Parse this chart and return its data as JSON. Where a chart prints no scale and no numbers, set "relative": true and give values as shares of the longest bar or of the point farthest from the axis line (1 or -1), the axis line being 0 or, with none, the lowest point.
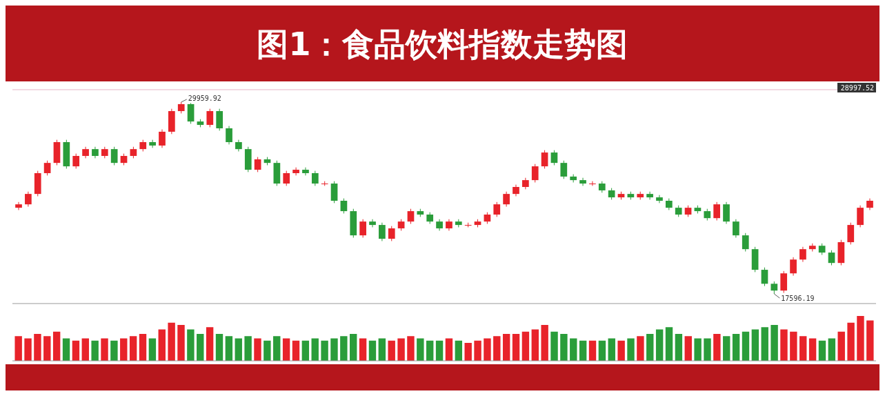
{
  "chart_data": [
    {
      "type": "candlestick",
      "title": "图1：食品饮料指数走势图",
      "categories": [
        null,
        null,
        null,
        null,
        null,
        null,
        null,
        null,
        null,
        null,
        null,
        null,
        null,
        null,
        null,
        null,
        null,
        null,
        null,
        null,
        null,
        null,
        null,
        null,
        null,
        null,
        null,
        null,
        null,
        null,
        null,
        null,
        null,
        null,
        null,
        null,
        null,
        null,
        null,
        null,
        null,
        null,
        null,
        null,
        null,
        null,
        null,
        null,
        null,
        null,
        null,
        null,
        null,
        null,
        null,
        null,
        null,
        null,
        null,
        null,
        null,
        null,
        null,
        null,
        null,
        null,
        null,
        null,
        null,
        null,
        null,
        null,
        null,
        null,
        null,
        null,
        null,
        null,
        null,
        null,
        null,
        null,
        null,
        null,
        null,
        null,
        null,
        null,
        null,
        null
      ],
      "ohlc": [
        [
          23150,
          23520,
          23000,
          23370
        ],
        [
          23370,
          24190,
          23220,
          24040
        ],
        [
          24040,
          25530,
          23890,
          25380
        ],
        [
          25380,
          26190,
          25230,
          26040
        ],
        [
          26040,
          27530,
          25890,
          27380
        ],
        [
          27380,
          27530,
          25670,
          25820
        ],
        [
          25820,
          26640,
          25670,
          26490
        ],
        [
          26490,
          27080,
          26340,
          26930
        ],
        [
          26930,
          27080,
          26340,
          26490
        ],
        [
          26490,
          27080,
          26340,
          26930
        ],
        [
          26930,
          27080,
          25890,
          26040
        ],
        [
          26040,
          26640,
          25890,
          26490
        ],
        [
          26490,
          27080,
          26340,
          26930
        ],
        [
          26930,
          27530,
          26780,
          27380
        ],
        [
          27380,
          27530,
          27010,
          27160
        ],
        [
          27160,
          28200,
          27010,
          28050
        ],
        [
          28050,
          29530,
          27900,
          29380
        ],
        [
          29380,
          29959.92,
          29230,
          29830
        ],
        [
          29830,
          29900,
          28560,
          28710
        ],
        [
          28710,
          28860,
          28340,
          28490
        ],
        [
          28490,
          29530,
          28340,
          29380
        ],
        [
          29380,
          29530,
          28120,
          28270
        ],
        [
          28270,
          28420,
          27230,
          27380
        ],
        [
          27380,
          27530,
          26780,
          26930
        ],
        [
          26930,
          27080,
          25450,
          25600
        ],
        [
          25600,
          26420,
          25450,
          26270
        ],
        [
          26270,
          26420,
          25890,
          26040
        ],
        [
          26040,
          26190,
          24560,
          24710
        ],
        [
          24710,
          25530,
          24560,
          25380
        ],
        [
          25380,
          25750,
          25230,
          25600
        ],
        [
          25600,
          25750,
          25230,
          25380
        ],
        [
          25380,
          25530,
          24560,
          24710
        ],
        [
          24710,
          24860,
          24560,
          24710
        ],
        [
          24710,
          24860,
          23450,
          23600
        ],
        [
          23600,
          23750,
          22780,
          22930
        ],
        [
          22930,
          23080,
          21220,
          21370
        ],
        [
          21370,
          22410,
          21220,
          22260
        ],
        [
          22260,
          22410,
          21890,
          22040
        ],
        [
          22040,
          22190,
          21000,
          21150
        ],
        [
          21150,
          21970,
          21000,
          21820
        ],
        [
          21820,
          22410,
          21670,
          22260
        ],
        [
          22260,
          23080,
          22110,
          22930
        ],
        [
          22930,
          23080,
          22560,
          22710
        ],
        [
          22710,
          22860,
          22110,
          22260
        ],
        [
          22260,
          22410,
          21670,
          21820
        ],
        [
          21820,
          22410,
          21670,
          22260
        ],
        [
          22260,
          22410,
          21890,
          22040
        ],
        [
          22040,
          22190,
          21890,
          22040
        ],
        [
          22040,
          22410,
          21890,
          22260
        ],
        [
          22260,
          22860,
          22110,
          22710
        ],
        [
          22710,
          23520,
          22560,
          23370
        ],
        [
          23370,
          24190,
          23220,
          24040
        ],
        [
          24040,
          24640,
          23890,
          24490
        ],
        [
          24490,
          25080,
          24340,
          24930
        ],
        [
          24930,
          25970,
          24780,
          25820
        ],
        [
          25820,
          26860,
          25670,
          26710
        ],
        [
          26710,
          26860,
          25890,
          26040
        ],
        [
          26040,
          26190,
          25010,
          25160
        ],
        [
          25160,
          25310,
          24780,
          24930
        ],
        [
          24930,
          25080,
          24560,
          24710
        ],
        [
          24710,
          24860,
          24560,
          24710
        ],
        [
          24710,
          24860,
          24120,
          24270
        ],
        [
          24270,
          24420,
          23670,
          23820
        ],
        [
          23820,
          24190,
          23670,
          24040
        ],
        [
          24040,
          24190,
          23670,
          23820
        ],
        [
          23820,
          24190,
          23670,
          24040
        ],
        [
          24040,
          24190,
          23670,
          23820
        ],
        [
          23820,
          23970,
          23450,
          23600
        ],
        [
          23600,
          23750,
          23000,
          23150
        ],
        [
          23150,
          23300,
          22560,
          22710
        ],
        [
          22710,
          23300,
          22560,
          23150
        ],
        [
          23150,
          23300,
          22780,
          22930
        ],
        [
          22930,
          23080,
          22330,
          22480
        ],
        [
          22480,
          23520,
          22330,
          23370
        ],
        [
          23370,
          23520,
          22110,
          22260
        ],
        [
          22260,
          22410,
          21220,
          21370
        ],
        [
          21370,
          21520,
          20330,
          20480
        ],
        [
          20480,
          20630,
          19000,
          19150
        ],
        [
          19150,
          19300,
          18100,
          18250
        ],
        [
          18250,
          18400,
          17596.19,
          17810
        ],
        [
          17810,
          19070,
          17660,
          18920
        ],
        [
          18920,
          19960,
          18770,
          19810
        ],
        [
          19810,
          20630,
          19660,
          20480
        ],
        [
          20480,
          20850,
          20330,
          20700
        ],
        [
          20700,
          20850,
          20110,
          20260
        ],
        [
          20260,
          20410,
          19440,
          19590
        ],
        [
          19590,
          21080,
          19440,
          20930
        ],
        [
          20930,
          22190,
          20780,
          22040
        ],
        [
          22040,
          23300,
          21890,
          23150
        ],
        [
          23150,
          23750,
          23000,
          23600
        ]
      ],
      "annotations": [
        "29959.92",
        "17596.19",
        "28997.52"
      ]
    },
    {
      "type": "bar",
      "relative": true,
      "categories": [
        null,
        null,
        null,
        null,
        null,
        null,
        null,
        null,
        null,
        null,
        null,
        null,
        null,
        null,
        null,
        null,
        null,
        null,
        null,
        null,
        null,
        null,
        null,
        null,
        null,
        null,
        null,
        null,
        null,
        null,
        null,
        null,
        null,
        null,
        null,
        null,
        null,
        null,
        null,
        null,
        null,
        null,
        null,
        null,
        null,
        null,
        null,
        null,
        null,
        null,
        null,
        null,
        null,
        null,
        null,
        null,
        null,
        null,
        null,
        null,
        null,
        null,
        null,
        null,
        null,
        null,
        null,
        null,
        null,
        null,
        null,
        null,
        null,
        null,
        null,
        null,
        null,
        null,
        null,
        null,
        null,
        null,
        null,
        null,
        null,
        null,
        null,
        null,
        null,
        null
      ],
      "values": [
        0.55,
        0.5,
        0.6,
        0.55,
        0.65,
        0.5,
        0.45,
        0.5,
        0.45,
        0.5,
        0.45,
        0.5,
        0.55,
        0.6,
        0.5,
        0.7,
        0.85,
        0.8,
        0.7,
        0.6,
        0.75,
        0.6,
        0.55,
        0.5,
        0.55,
        0.5,
        0.45,
        0.55,
        0.5,
        0.45,
        0.45,
        0.5,
        0.45,
        0.5,
        0.55,
        0.6,
        0.5,
        0.45,
        0.5,
        0.45,
        0.5,
        0.55,
        0.5,
        0.45,
        0.45,
        0.5,
        0.45,
        0.4,
        0.45,
        0.5,
        0.55,
        0.6,
        0.6,
        0.65,
        0.7,
        0.8,
        0.65,
        0.6,
        0.5,
        0.45,
        0.45,
        0.45,
        0.5,
        0.45,
        0.5,
        0.55,
        0.6,
        0.7,
        0.75,
        0.6,
        0.55,
        0.5,
        0.5,
        0.6,
        0.55,
        0.6,
        0.65,
        0.7,
        0.75,
        0.8,
        0.7,
        0.65,
        0.55,
        0.5,
        0.45,
        0.5,
        0.65,
        0.85,
        1,
        0.9
      ],
      "colors": [
        "#e8232a",
        "#e8232a",
        "#e8232a",
        "#e8232a",
        "#e8232a",
        "#2a9d3a",
        "#e8232a",
        "#e8232a",
        "#2a9d3a",
        "#e8232a",
        "#2a9d3a",
        "#e8232a",
        "#e8232a",
        "#e8232a",
        "#2a9d3a",
        "#e8232a",
        "#e8232a",
        "#e8232a",
        "#2a9d3a",
        "#2a9d3a",
        "#e8232a",
        "#2a9d3a",
        "#2a9d3a",
        "#2a9d3a",
        "#2a9d3a",
        "#e8232a",
        "#2a9d3a",
        "#2a9d3a",
        "#e8232a",
        "#e8232a",
        "#2a9d3a",
        "#2a9d3a",
        "#2a9d3a",
        "#2a9d3a",
        "#2a9d3a",
        "#2a9d3a",
        "#e8232a",
        "#2a9d3a",
        "#2a9d3a",
        "#e8232a",
        "#e8232a",
        "#e8232a",
        "#2a9d3a",
        "#2a9d3a",
        "#2a9d3a",
        "#e8232a",
        "#2a9d3a",
        "#e8232a",
        "#e8232a",
        "#e8232a",
        "#e8232a",
        "#e8232a",
        "#e8232a",
        "#e8232a",
        "#e8232a",
        "#e8232a",
        "#2a9d3a",
        "#2a9d3a",
        "#2a9d3a",
        "#2a9d3a",
        "#e8232a",
        "#2a9d3a",
        "#2a9d3a",
        "#e8232a",
        "#2a9d3a",
        "#e8232a",
        "#2a9d3a",
        "#2a9d3a",
        "#2a9d3a",
        "#2a9d3a",
        "#e8232a",
        "#2a9d3a",
        "#2a9d3a",
        "#e8232a",
        "#2a9d3a",
        "#2a9d3a",
        "#2a9d3a",
        "#2a9d3a",
        "#2a9d3a",
        "#2a9d3a",
        "#e8232a",
        "#e8232a",
        "#e8232a",
        "#e8232a",
        "#2a9d3a",
        "#2a9d3a",
        "#e8232a",
        "#e8232a",
        "#e8232a",
        "#e8232a"
      ]
    }
  ]
}
